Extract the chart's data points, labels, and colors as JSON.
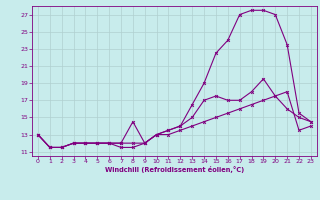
{
  "xlabel": "Windchill (Refroidissement éolien,°C)",
  "bg_color": "#c8ecec",
  "line_color": "#800080",
  "grid_color": "#b0d0d0",
  "xlim": [
    -0.5,
    23.5
  ],
  "ylim": [
    10.5,
    28.0
  ],
  "xticks": [
    0,
    1,
    2,
    3,
    4,
    5,
    6,
    7,
    8,
    9,
    10,
    11,
    12,
    13,
    14,
    15,
    16,
    17,
    18,
    19,
    20,
    21,
    22,
    23
  ],
  "yticks": [
    11,
    13,
    15,
    17,
    19,
    21,
    23,
    25,
    27
  ],
  "line1_x": [
    0,
    1,
    2,
    3,
    4,
    5,
    6,
    7,
    8,
    9,
    10,
    11,
    12,
    13,
    14,
    15,
    16,
    17,
    18,
    19,
    20,
    21,
    22,
    23
  ],
  "line1_y": [
    13,
    11.5,
    11.5,
    12,
    12,
    12,
    12,
    11.5,
    11.5,
    12,
    13,
    13.5,
    14,
    16.5,
    19,
    22.5,
    24,
    27,
    27.5,
    27.5,
    27,
    23.5,
    15.5,
    14.5
  ],
  "line2_x": [
    0,
    1,
    2,
    3,
    4,
    5,
    6,
    7,
    8,
    9,
    10,
    11,
    12,
    13,
    14,
    15,
    16,
    17,
    18,
    19,
    20,
    21,
    22,
    23
  ],
  "line2_y": [
    13,
    11.5,
    11.5,
    12,
    12,
    12,
    12,
    12,
    14.5,
    12,
    13,
    13.5,
    14,
    15,
    17,
    17.5,
    17,
    17,
    18,
    19.5,
    17.5,
    16,
    15,
    14.5
  ],
  "line3_x": [
    0,
    1,
    2,
    3,
    4,
    5,
    6,
    7,
    8,
    9,
    10,
    11,
    12,
    13,
    14,
    15,
    16,
    17,
    18,
    19,
    20,
    21,
    22,
    23
  ],
  "line3_y": [
    13,
    11.5,
    11.5,
    12,
    12,
    12,
    12,
    12,
    12,
    12,
    13,
    13,
    13.5,
    14,
    14.5,
    15,
    15.5,
    16,
    16.5,
    17,
    17.5,
    18,
    13.5,
    14
  ]
}
